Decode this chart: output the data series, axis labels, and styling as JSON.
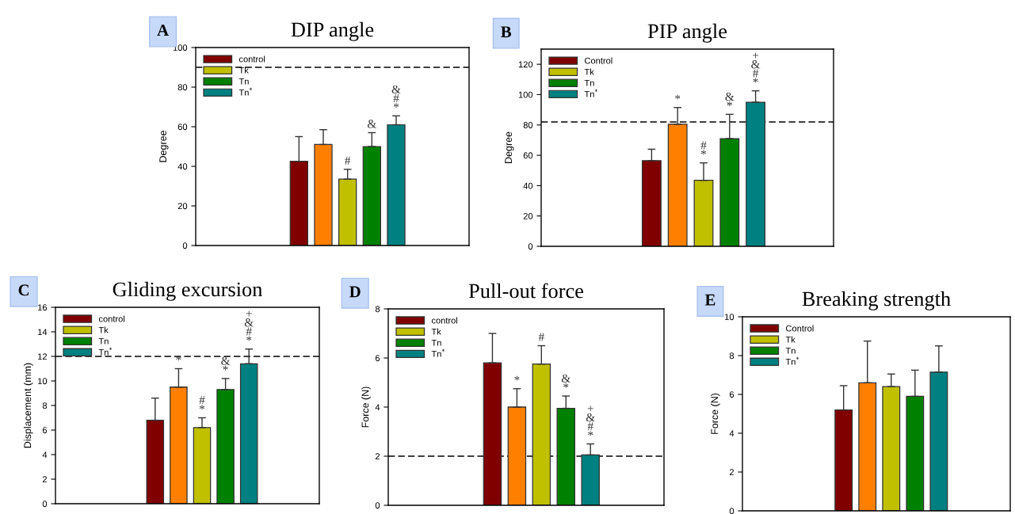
{
  "chart_data": [
    {
      "type": "bar",
      "title": "DIP angle",
      "ylabel": "Degree",
      "annotations": [
        "A"
      ],
      "categories": [
        null
      ],
      "ylim": [
        0,
        100
      ],
      "yticks": [
        0,
        20,
        40,
        60,
        80,
        100
      ],
      "legend": "top left",
      "grid": false,
      "ref_lines": [
        {
          "axis": "y",
          "value": 90,
          "line_style": "dashed",
          "color": "#000000"
        }
      ],
      "series": [
        {
          "name": "control",
          "color": "#800000",
          "values": [
            42.5
          ],
          "errors": [
            [
              42.5,
              55
            ]
          ],
          "value_labels": [
            null
          ]
        },
        {
          "color": "#ff8000",
          "values": [
            51
          ],
          "errors": [
            [
              51,
              58.5
            ]
          ],
          "value_labels": [
            null
          ]
        },
        {
          "name": "Tk",
          "color": "#c0c000",
          "values": [
            33.5
          ],
          "errors": [
            [
              33.5,
              38.5
            ]
          ],
          "value_labels": [
            "#"
          ]
        },
        {
          "name": "Tn",
          "color": "#008000",
          "values": [
            50
          ],
          "errors": [
            [
              50,
              57
            ]
          ],
          "value_labels": [
            "&"
          ]
        },
        {
          "name": "Tn$^{*}$",
          "color": "#008080",
          "values": [
            61
          ],
          "errors": [
            [
              61,
              65.5
            ]
          ],
          "value_labels": [
            "&\n#\n*"
          ]
        }
      ]
    },
    {
      "type": "bar",
      "title": "PIP angle",
      "ylabel": "Degree",
      "annotations": [
        "B"
      ],
      "categories": [
        null
      ],
      "ylim": [
        0,
        130
      ],
      "yticks": [
        0,
        20,
        40,
        60,
        80,
        100,
        120
      ],
      "legend": "top left",
      "grid": false,
      "ref_lines": [
        {
          "axis": "y",
          "value": 82,
          "line_style": "dashed",
          "color": "#000000"
        }
      ],
      "series": [
        {
          "name": "Control",
          "color": "#800000",
          "values": [
            56.5
          ],
          "errors": [
            [
              56.5,
              64
            ]
          ],
          "value_labels": [
            null
          ]
        },
        {
          "color": "#ff8000",
          "values": [
            80.5
          ],
          "errors": [
            [
              80.5,
              91.5
            ]
          ],
          "value_labels": [
            "*"
          ]
        },
        {
          "name": "Tk",
          "color": "#c0c000",
          "values": [
            43.5
          ],
          "errors": [
            [
              43.5,
              55
            ]
          ],
          "value_labels": [
            "#\n*"
          ]
        },
        {
          "name": "Tn",
          "color": "#008000",
          "values": [
            71
          ],
          "errors": [
            [
              71,
              87
            ]
          ],
          "value_labels": [
            "&\n*"
          ]
        },
        {
          "name": "Tn$^{*}$",
          "color": "#008080",
          "values": [
            95
          ],
          "errors": [
            [
              95,
              102.5
            ]
          ],
          "value_labels": [
            "+\n&\n#\n*"
          ]
        }
      ]
    },
    {
      "type": "bar",
      "title": "Gliding excursion",
      "ylabel": "Displacement (mm)",
      "annotations": [
        "C"
      ],
      "categories": [
        null
      ],
      "ylim": [
        0,
        16
      ],
      "yticks": [
        0,
        2,
        4,
        6,
        8,
        10,
        12,
        14,
        16
      ],
      "legend": "top left",
      "grid": false,
      "ref_lines": [
        {
          "axis": "y",
          "value": 12,
          "line_style": "dashed",
          "color": "#000000"
        }
      ],
      "series": [
        {
          "name": "control",
          "color": "#800000",
          "values": [
            6.8
          ],
          "errors": [
            [
              6.8,
              8.6
            ]
          ],
          "value_labels": [
            null
          ]
        },
        {
          "color": "#ff8000",
          "values": [
            9.5
          ],
          "errors": [
            [
              9.5,
              11
            ]
          ],
          "value_labels": [
            "*"
          ]
        },
        {
          "name": "Tk",
          "color": "#c0c000",
          "values": [
            6.2
          ],
          "errors": [
            [
              6.2,
              7
            ]
          ],
          "value_labels": [
            "#\n*"
          ]
        },
        {
          "name": "Tn",
          "color": "#008000",
          "values": [
            9.3
          ],
          "errors": [
            [
              9.3,
              10.2
            ]
          ],
          "value_labels": [
            "&\n*"
          ]
        },
        {
          "name": "Tn$^{*}$",
          "color": "#008080",
          "values": [
            11.4
          ],
          "errors": [
            [
              11.4,
              12.6
            ]
          ],
          "value_labels": [
            "+\n&\n#\n*"
          ]
        }
      ]
    },
    {
      "type": "bar",
      "title": "Pull-out force",
      "ylabel": "Force (N)",
      "annotations": [
        "D"
      ],
      "categories": [
        null
      ],
      "ylim": [
        0,
        8
      ],
      "yticks": [
        0,
        2,
        4,
        6,
        8
      ],
      "legend": "top left",
      "grid": false,
      "ref_lines": [
        {
          "axis": "y",
          "value": 2,
          "line_style": "dashed",
          "color": "#000000"
        }
      ],
      "series": [
        {
          "name": "control",
          "color": "#800000",
          "values": [
            5.8
          ],
          "errors": [
            [
              5.8,
              7
            ]
          ],
          "value_labels": [
            null
          ]
        },
        {
          "color": "#ff8000",
          "values": [
            4
          ],
          "errors": [
            [
              4,
              4.75
            ]
          ],
          "value_labels": [
            "*"
          ]
        },
        {
          "name": "Tk",
          "color": "#c0c000",
          "values": [
            5.75
          ],
          "errors": [
            [
              5.75,
              6.5
            ]
          ],
          "value_labels": [
            "#"
          ]
        },
        {
          "name": "Tn",
          "color": "#008000",
          "values": [
            3.95
          ],
          "errors": [
            [
              3.95,
              4.45
            ]
          ],
          "value_labels": [
            "&\n*"
          ]
        },
        {
          "name": "Tn$^{*}$",
          "color": "#008080",
          "values": [
            2.05
          ],
          "errors": [
            [
              2.05,
              2.5
            ]
          ],
          "value_labels": [
            "+\n&\n#\n*"
          ]
        }
      ]
    },
    {
      "type": "bar",
      "title": "Breaking strength",
      "ylabel": "Force (N)",
      "annotations": [
        "E"
      ],
      "categories": [
        null
      ],
      "ylim": [
        0,
        10
      ],
      "yticks": [
        0,
        2,
        4,
        6,
        8,
        10
      ],
      "legend": "top left",
      "grid": false,
      "series": [
        {
          "name": "Control",
          "color": "#800000",
          "values": [
            5.2
          ],
          "errors": [
            [
              5.2,
              6.45
            ]
          ]
        },
        {
          "color": "#ff8000",
          "values": [
            6.6
          ],
          "errors": [
            [
              6.6,
              8.75
            ]
          ]
        },
        {
          "name": "Tk",
          "color": "#c0c000",
          "values": [
            6.4
          ],
          "errors": [
            [
              6.4,
              7.05
            ]
          ]
        },
        {
          "name": "Tn",
          "color": "#008000",
          "values": [
            5.9
          ],
          "errors": [
            [
              5.9,
              7.25
            ]
          ]
        },
        {
          "name": "Tn$^{*}$",
          "color": "#008080",
          "values": [
            7.15
          ],
          "errors": [
            [
              7.15,
              8.5
            ]
          ]
        }
      ]
    }
  ]
}
